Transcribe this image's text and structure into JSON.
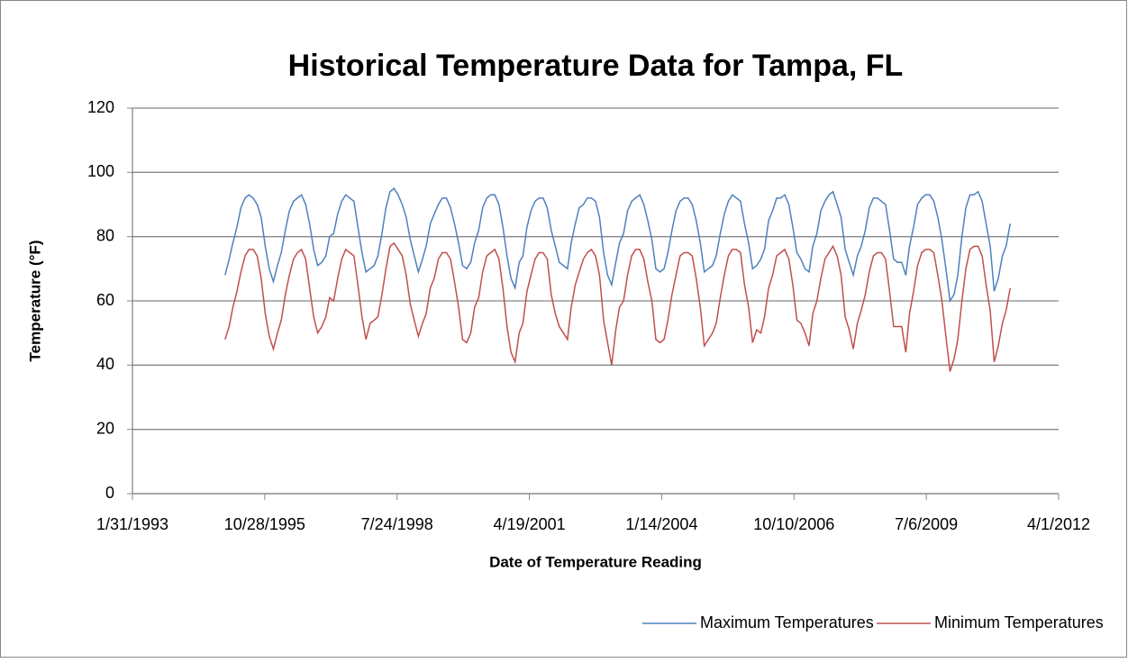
{
  "chart_data": {
    "type": "line",
    "title": "Historical Temperature Data for Tampa, FL",
    "x_label": "Date of Temperature Reading",
    "y_label": "Temperature (°F)",
    "xlim": [
      "1/31/1993",
      "4/1/2012"
    ],
    "xticks": [
      "1/31/1993",
      "10/28/1995",
      "7/24/1998",
      "4/19/2001",
      "1/14/2004",
      "10/10/2006",
      "7/6/2009",
      "4/1/2012"
    ],
    "ylim": [
      0,
      120
    ],
    "yticks": [
      0,
      20,
      40,
      60,
      80,
      100,
      120
    ],
    "grid": true,
    "legend": "bottom",
    "x": [
      "1/1/1995",
      "2/1/1995",
      "3/1/1995",
      "4/1/1995",
      "5/1/1995",
      "6/1/1995",
      "7/1/1995",
      "8/1/1995",
      "9/1/1995",
      "10/1/1995",
      "11/1/1995",
      "12/1/1995",
      "1/1/1996",
      "2/1/1996",
      "3/1/1996",
      "4/1/1996",
      "5/1/1996",
      "6/1/1996",
      "7/1/1996",
      "8/1/1996",
      "9/1/1996",
      "10/1/1996",
      "11/1/1996",
      "12/1/1996",
      "1/1/1997",
      "2/1/1997",
      "3/1/1997",
      "4/1/1997",
      "5/1/1997",
      "6/1/1997",
      "7/1/1997",
      "8/1/1997",
      "9/1/1997",
      "10/1/1997",
      "11/1/1997",
      "12/1/1997",
      "1/1/1998",
      "2/1/1998",
      "3/1/1998",
      "4/1/1998",
      "5/1/1998",
      "6/1/1998",
      "7/1/1998",
      "8/1/1998",
      "9/1/1998",
      "10/1/1998",
      "11/1/1998",
      "12/1/1998",
      "1/1/1999",
      "2/1/1999",
      "3/1/1999",
      "4/1/1999",
      "5/1/1999",
      "6/1/1999",
      "7/1/1999",
      "8/1/1999",
      "9/1/1999",
      "10/1/1999",
      "11/1/1999",
      "12/1/1999",
      "1/1/2000",
      "2/1/2000",
      "3/1/2000",
      "4/1/2000",
      "5/1/2000",
      "6/1/2000",
      "7/1/2000",
      "8/1/2000",
      "9/1/2000",
      "10/1/2000",
      "11/1/2000",
      "12/1/2000",
      "1/1/2001",
      "2/1/2001",
      "3/1/2001",
      "4/1/2001",
      "5/1/2001",
      "6/1/2001",
      "7/1/2001",
      "8/1/2001",
      "9/1/2001",
      "10/1/2001",
      "11/1/2001",
      "12/1/2001",
      "1/1/2002",
      "2/1/2002",
      "3/1/2002",
      "4/1/2002",
      "5/1/2002",
      "6/1/2002",
      "7/1/2002",
      "8/1/2002",
      "9/1/2002",
      "10/1/2002",
      "11/1/2002",
      "12/1/2002",
      "1/1/2003",
      "2/1/2003",
      "3/1/2003",
      "4/1/2003",
      "5/1/2003",
      "6/1/2003",
      "7/1/2003",
      "8/1/2003",
      "9/1/2003",
      "10/1/2003",
      "11/1/2003",
      "12/1/2003",
      "1/1/2004",
      "2/1/2004",
      "3/1/2004",
      "4/1/2004",
      "5/1/2004",
      "6/1/2004",
      "7/1/2004",
      "8/1/2004",
      "9/1/2004",
      "10/1/2004",
      "11/1/2004",
      "12/1/2004",
      "1/1/2005",
      "2/1/2005",
      "3/1/2005",
      "4/1/2005",
      "5/1/2005",
      "6/1/2005",
      "7/1/2005",
      "8/1/2005",
      "9/1/2005",
      "10/1/2005",
      "11/1/2005",
      "12/1/2005",
      "1/1/2006",
      "2/1/2006",
      "3/1/2006",
      "4/1/2006",
      "5/1/2006",
      "6/1/2006",
      "7/1/2006",
      "8/1/2006",
      "9/1/2006",
      "10/1/2006",
      "11/1/2006",
      "12/1/2006",
      "1/1/2007",
      "2/1/2007",
      "3/1/2007",
      "4/1/2007",
      "5/1/2007",
      "6/1/2007",
      "7/1/2007",
      "8/1/2007",
      "9/1/2007",
      "10/1/2007",
      "11/1/2007",
      "12/1/2007",
      "1/1/2008",
      "2/1/2008",
      "3/1/2008",
      "4/1/2008",
      "5/1/2008",
      "6/1/2008",
      "7/1/2008",
      "8/1/2008",
      "9/1/2008",
      "10/1/2008",
      "11/1/2008",
      "12/1/2008",
      "1/1/2009",
      "2/1/2009",
      "3/1/2009",
      "4/1/2009",
      "5/1/2009",
      "6/1/2009",
      "7/1/2009",
      "8/1/2009",
      "9/1/2009",
      "10/1/2009",
      "11/1/2009",
      "12/1/2009",
      "1/1/2010",
      "2/1/2010",
      "3/1/2010",
      "4/1/2010",
      "5/1/2010",
      "6/1/2010",
      "7/1/2010",
      "8/1/2010",
      "9/1/2010",
      "10/1/2010",
      "11/1/2010",
      "12/1/2010",
      "1/1/2011",
      "2/1/2011",
      "3/1/2011",
      "4/1/2011"
    ],
    "series": [
      {
        "name": "Maximum Temperatures",
        "color": "#4f81bd",
        "values": [
          68,
          73,
          78,
          83,
          89,
          92,
          93,
          92,
          90,
          86,
          77,
          70,
          66,
          71,
          75,
          82,
          88,
          91,
          92,
          93,
          90,
          84,
          76,
          71,
          72,
          74,
          80,
          81,
          87,
          91,
          93,
          92,
          91,
          83,
          75,
          69,
          70,
          71,
          74,
          81,
          89,
          94,
          95,
          93,
          90,
          86,
          79,
          74,
          69,
          73,
          77,
          84,
          87,
          90,
          92,
          92,
          89,
          84,
          78,
          71,
          70,
          72,
          78,
          82,
          89,
          92,
          93,
          93,
          90,
          83,
          74,
          67,
          64,
          72,
          74,
          83,
          88,
          91,
          92,
          92,
          89,
          82,
          77,
          72,
          71,
          70,
          78,
          84,
          89,
          90,
          92,
          92,
          91,
          86,
          75,
          68,
          65,
          72,
          78,
          81,
          88,
          91,
          92,
          93,
          90,
          85,
          79,
          70,
          69,
          70,
          75,
          82,
          88,
          91,
          92,
          92,
          90,
          85,
          78,
          69,
          70,
          71,
          74,
          81,
          87,
          91,
          93,
          92,
          91,
          84,
          78,
          70,
          71,
          73,
          76,
          85,
          88,
          92,
          92,
          93,
          90,
          83,
          75,
          73,
          70,
          69,
          77,
          81,
          88,
          91,
          93,
          94,
          90,
          86,
          76,
          72,
          68,
          74,
          77,
          82,
          89,
          92,
          92,
          91,
          90,
          82,
          73,
          72,
          72,
          68,
          77,
          83,
          90,
          92,
          93,
          93,
          91,
          86,
          79,
          70,
          60,
          62,
          68,
          80,
          89,
          93,
          93,
          94,
          91,
          84,
          77,
          63,
          67,
          74,
          77,
          84
        ]
      },
      {
        "name": "Minimum Temperatures",
        "color": "#c0504d",
        "values": [
          48,
          52,
          58,
          63,
          69,
          74,
          76,
          76,
          74,
          67,
          56,
          49,
          45,
          50,
          54,
          62,
          68,
          73,
          75,
          76,
          73,
          64,
          55,
          50,
          52,
          55,
          61,
          60,
          67,
          73,
          76,
          75,
          74,
          65,
          55,
          48,
          53,
          54,
          55,
          62,
          70,
          77,
          78,
          76,
          74,
          68,
          59,
          54,
          49,
          53,
          56,
          64,
          67,
          73,
          75,
          75,
          73,
          66,
          58,
          48,
          47,
          50,
          58,
          61,
          69,
          74,
          75,
          76,
          73,
          64,
          52,
          44,
          41,
          50,
          53,
          63,
          68,
          73,
          75,
          75,
          73,
          62,
          56,
          52,
          50,
          48,
          58,
          65,
          69,
          73,
          75,
          76,
          74,
          68,
          54,
          47,
          40,
          51,
          58,
          60,
          68,
          74,
          76,
          76,
          73,
          66,
          60,
          48,
          47,
          48,
          54,
          62,
          68,
          74,
          75,
          75,
          74,
          67,
          58,
          46,
          48,
          50,
          53,
          61,
          68,
          74,
          76,
          76,
          75,
          65,
          58,
          47,
          51,
          50,
          55,
          64,
          68,
          74,
          75,
          76,
          73,
          65,
          54,
          53,
          50,
          46,
          56,
          60,
          67,
          73,
          75,
          77,
          74,
          68,
          55,
          51,
          45,
          53,
          57,
          62,
          69,
          74,
          75,
          75,
          73,
          63,
          52,
          52,
          52,
          44,
          56,
          63,
          71,
          75,
          76,
          76,
          75,
          68,
          60,
          49,
          38,
          42,
          48,
          60,
          70,
          76,
          77,
          77,
          74,
          65,
          57,
          41,
          46,
          53,
          57,
          64
        ]
      }
    ]
  }
}
